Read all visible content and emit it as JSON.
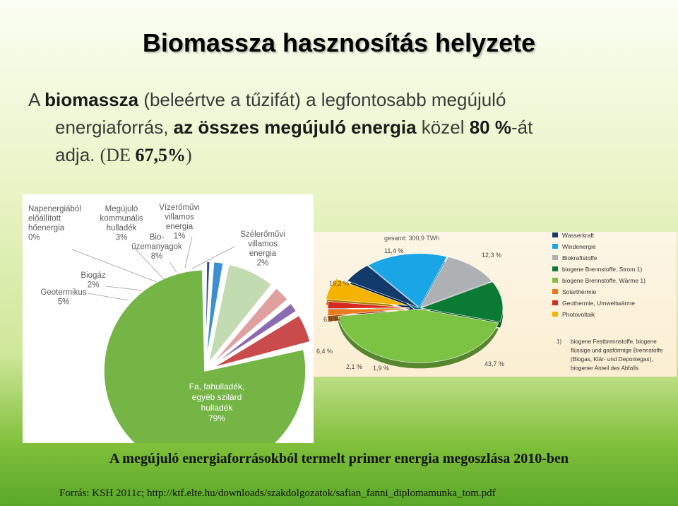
{
  "slide": {
    "title": "Biomassza hasznosítás helyzete",
    "p1": "A ",
    "p1b": "biomassza",
    "p1c": " (beleértve a tűzifát) a legfontosabb megújuló",
    "p2": "energiaforrás, ",
    "p2b": "az összes megújuló energia",
    "p2c": " közel ",
    "p2d": "80 %",
    "p2e": "-át",
    "p3": "adja. ",
    "p3s1": "(DE ",
    "p3s2": "67,5%",
    "p3s3": ")",
    "caption": "A megújuló energiaforrásokból termelt primer energia megoszlása 2010-ben",
    "source": "Forrás: KSH 2011c; http://ktf.elte.hu/downloads/szakdolgozatok/safian_fanni_diplomamunka_tom.pdf"
  },
  "chart_data": [
    {
      "type": "pie",
      "categories": [
        "Vízerőművi villamos energia",
        "Szélerőművi villamos energia",
        "Bio-üzemanyagok",
        "Megújuló kommunális hulladék",
        "Napenergiából előállított hőenergia",
        "Biogáz",
        "Geotermikus",
        "Fa, fahulladék, egyéb szilárd hulladék"
      ],
      "values": [
        1,
        2,
        8,
        3,
        0,
        2,
        5,
        79
      ],
      "labels": [
        [
          "Vízerőművi",
          "villamos",
          "energia",
          "1%"
        ],
        [
          "Szélerőművi",
          "villamos",
          "energia",
          "2%"
        ],
        [
          "Bio-",
          "üzemanyagok",
          "8%"
        ],
        [
          "Megújuló",
          "kommunális",
          "hulladék",
          "3%"
        ],
        [
          "Napenergiából",
          "előállított",
          "hőenergia",
          "0%"
        ],
        [
          "Biogáz",
          "2%"
        ],
        [
          "Geotermikus",
          "5%"
        ],
        [
          "Fa, fahulladék,",
          "egyéb szilárd",
          "hulladék",
          "79%"
        ]
      ],
      "colors": [
        "#2b4d8c",
        "#3d8fd1",
        "#c2dbb0",
        "#e0a0a0",
        "#f2c6b0",
        "#8c6ab2",
        "#c94b4b",
        "#74b546"
      ]
    },
    {
      "type": "pie",
      "title": "gesamt: 300,9 TWh",
      "categories": [
        "Wasserkraft",
        "Windenergie",
        "Biokraftstoffe",
        "biogene Brennstoffe, Strom 1)",
        "biogene Brennstoffe, Wärme 1)",
        "Solarthermie",
        "Geothermie, Umweltwärme",
        "Photovoltaik"
      ],
      "values": [
        6.0,
        16.2,
        11.4,
        12.3,
        43.7,
        1.9,
        2.1,
        6.4
      ],
      "value_labels": [
        "6,0 %",
        "16,2 %",
        "11,4 %",
        "12,3 %",
        "43,7 %",
        "1,9 %",
        "2,1 %",
        "6,4 %"
      ],
      "colors": [
        "#123a6b",
        "#1aa5e6",
        "#aeb1b4",
        "#0a7a34",
        "#7cc243",
        "#e87a1d",
        "#d42a22",
        "#f5b300"
      ],
      "footnote": [
        "1)",
        "biogene Festbrennstoffe, biogene",
        "flüssige und gasförmige Brennstoffe",
        "(Biogas, Klär- und Deponiegas),",
        "biogener Anteil des Abfalls"
      ]
    }
  ]
}
